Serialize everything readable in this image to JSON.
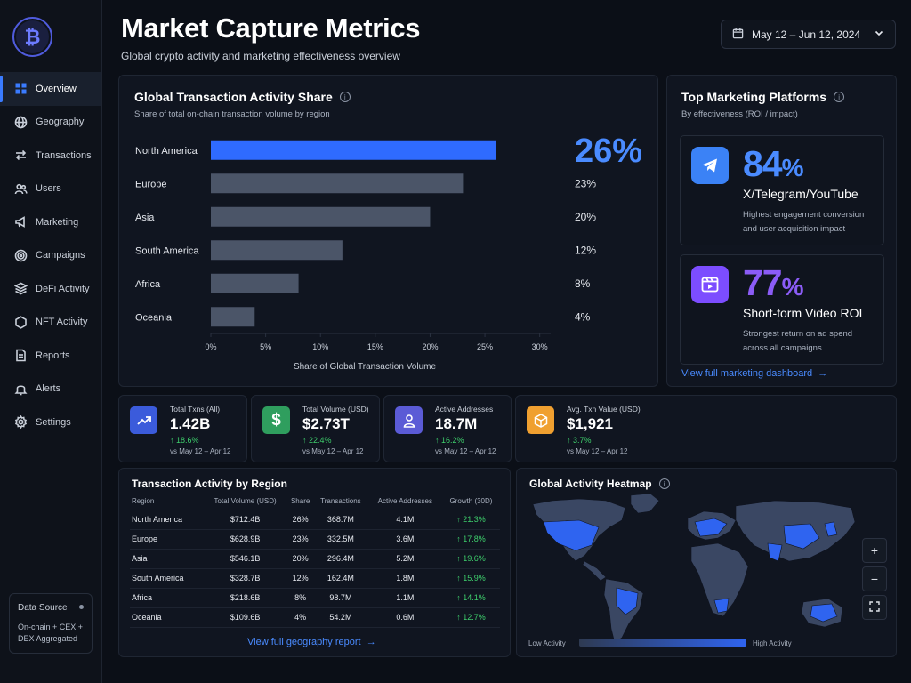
{
  "sidebar": {
    "items": [
      {
        "label": "Overview",
        "icon": "grid-icon",
        "active": true
      },
      {
        "label": "Geography",
        "icon": "globe-icon"
      },
      {
        "label": "Transactions",
        "icon": "arrows-icon"
      },
      {
        "label": "Users",
        "icon": "users-icon"
      },
      {
        "label": "Marketing",
        "icon": "megaphone-icon"
      },
      {
        "label": "Campaigns",
        "icon": "target-icon"
      },
      {
        "label": "DeFi Activity",
        "icon": "layers-icon"
      },
      {
        "label": "NFT Activity",
        "icon": "hexagon-icon"
      },
      {
        "label": "Reports",
        "icon": "document-icon"
      },
      {
        "label": "Alerts",
        "icon": "bell-icon"
      },
      {
        "label": "Settings",
        "icon": "gear-icon"
      }
    ],
    "data_source": {
      "title": "Data Source",
      "desc": "On-chain + CEX + DEX Aggregated"
    }
  },
  "header": {
    "title": "Market Capture Metrics",
    "subtitle": "Global crypto activity and marketing effectiveness overview",
    "date_range": "May 12 – Jun 12, 2024"
  },
  "activity_share": {
    "title": "Global Transaction Activity Share",
    "subtitle": "Share of total on-chain transaction volume by region"
  },
  "chart_data": {
    "type": "bar",
    "orientation": "horizontal",
    "categories": [
      "North America",
      "Europe",
      "Asia",
      "South America",
      "Africa",
      "Oceania"
    ],
    "values": [
      26,
      23,
      20,
      12,
      8,
      4
    ],
    "value_labels": [
      "26%",
      "23%",
      "20%",
      "12%",
      "8%",
      "4%"
    ],
    "xlabel": "Share of Global Transaction Volume",
    "ylabel": "",
    "xlim": [
      0,
      31
    ],
    "xticks": [
      0,
      5,
      10,
      15,
      20,
      25,
      30
    ],
    "xtick_labels": [
      "0%",
      "5%",
      "10%",
      "15%",
      "20%",
      "25%",
      "30%"
    ],
    "highlight_color": "#2f6bff",
    "bar_color": "#4b5568"
  },
  "marketing": {
    "title": "Top Marketing Platforms",
    "subtitle": "By effectiveness (ROI / impact)",
    "platforms": [
      {
        "pct": "84",
        "unit": "%",
        "name": "X/Telegram/YouTube",
        "desc": "Highest engagement conversion and user acquisition impact",
        "color": "#3b82f6",
        "icon": "telegram-icon"
      },
      {
        "pct": "77",
        "unit": "%",
        "name": "Short-form Video ROI",
        "desc": "Strongest return on ad spend across all campaigns",
        "color": "#8b5cf6",
        "icon": "video-icon"
      }
    ],
    "link": "View full marketing dashboard"
  },
  "kpis": [
    {
      "label": "Total Txns (All)",
      "value": "1.42B",
      "delta": "↑ 18.6%",
      "vs": "vs May 12 – Apr 12",
      "color": "#3b5bdb",
      "icon": "trend-up-icon"
    },
    {
      "label": "Total Volume (USD)",
      "value": "$2.73T",
      "delta": "↑ 22.4%",
      "vs": "vs May 12 – Apr 12",
      "color": "#2f9e5e",
      "icon": "dollar-icon"
    },
    {
      "label": "Active Addresses",
      "value": "18.7M",
      "delta": "↑ 16.2%",
      "vs": "vs May 12 – Apr 12",
      "color": "#5b5bd6",
      "icon": "user-icon"
    },
    {
      "label": "Avg. Txn Value (USD)",
      "value": "$1,921",
      "delta": "↑ 3.7%",
      "vs": "vs May 12 – Apr 12",
      "color": "#f0a030",
      "icon": "box-icon"
    }
  ],
  "region_table": {
    "title": "Transaction Activity by Region",
    "columns": [
      "Region",
      "Total Volume (USD)",
      "Share",
      "Transactions",
      "Active Addresses",
      "Growth (30D)"
    ],
    "rows": [
      [
        "North America",
        "$712.4B",
        "26%",
        "368.7M",
        "4.1M",
        "↑ 21.3%"
      ],
      [
        "Europe",
        "$628.9B",
        "23%",
        "332.5M",
        "3.6M",
        "↑ 17.8%"
      ],
      [
        "Asia",
        "$546.1B",
        "20%",
        "296.4M",
        "5.2M",
        "↑ 19.6%"
      ],
      [
        "South America",
        "$328.7B",
        "12%",
        "162.4M",
        "1.8M",
        "↑ 15.9%"
      ],
      [
        "Africa",
        "$218.6B",
        "8%",
        "98.7M",
        "1.1M",
        "↑ 14.1%"
      ],
      [
        "Oceania",
        "$109.6B",
        "4%",
        "54.2M",
        "0.6M",
        "↑ 12.7%"
      ]
    ],
    "link": "View full geography report"
  },
  "heatmap": {
    "title": "Global Activity Heatmap",
    "legend_low": "Low Activity",
    "legend_high": "High Activity",
    "zoom_in": "+",
    "zoom_out": "−"
  }
}
